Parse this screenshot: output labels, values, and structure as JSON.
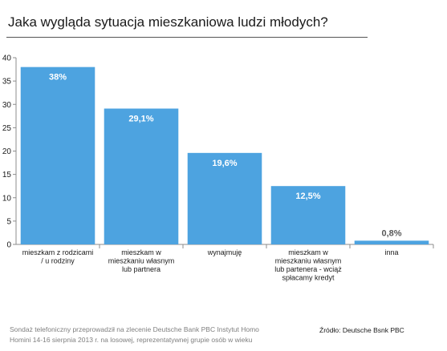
{
  "header": {
    "title": "Jaka wygląda sytuacja mieszkaniowa ludzi młodych?"
  },
  "chart_data": {
    "type": "bar",
    "categories": [
      [
        "mieszkam z rodzicami",
        "/ u rodziny"
      ],
      [
        "mieszkam w",
        "mieszkaniu własnym",
        "lub partnera"
      ],
      [
        "wynajmuję"
      ],
      [
        "mieszkam w",
        "mieszkaniu własnym",
        "lub partenera - wciąż",
        "spłacamy kredyt"
      ],
      [
        "inna"
      ]
    ],
    "values": [
      38,
      29.1,
      19.6,
      12.5,
      0.8
    ],
    "data_labels": [
      "38%",
      "29,1%",
      "19,6%",
      "12,5%",
      "0,8%"
    ],
    "yticks": [
      "0",
      "5",
      "10",
      "15",
      "20",
      "25",
      "30",
      "35",
      "40"
    ],
    "ylim": [
      0,
      40
    ],
    "grid": false,
    "bar_color": "#4da3e0"
  },
  "footer": {
    "note_lines": [
      "Sondaż telefoniczny przeprowadził na zlecenie Deutsche Bank PBC Instytut Homo",
      "Homini 14-16 sierpnia 2013 r. na losowej, reprezentatywnej grupie osób w wieku"
    ],
    "source": "Źródło: Deutsche Bsnk PBC"
  }
}
